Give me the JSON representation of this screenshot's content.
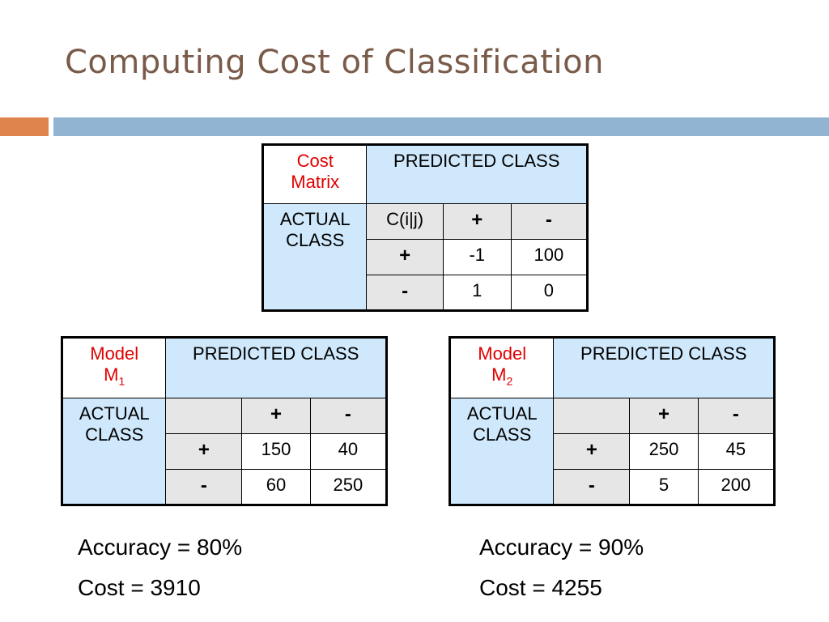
{
  "title": "Computing Cost of Classification",
  "colors": {
    "title": "#7a5b4a",
    "accent_bar": "#e0844e",
    "main_bar": "#91b4d2",
    "header_fill": "#cfe8fb",
    "cell_fill": "#e6e6e6",
    "red_label": "#e00000"
  },
  "cost_matrix": {
    "corner": [
      "Cost",
      "Matrix"
    ],
    "predicted_header": "PREDICTED CLASS",
    "actual_header": [
      "ACTUAL",
      "CLASS"
    ],
    "corner_cell": "C(i|j)",
    "col_labels": [
      "+",
      "-"
    ],
    "rows": [
      {
        "label": "+",
        "values": [
          "-1",
          "100"
        ]
      },
      {
        "label": "-",
        "values": [
          "1",
          "0"
        ]
      }
    ]
  },
  "model1": {
    "corner": [
      "Model",
      "M",
      "1"
    ],
    "predicted_header": "PREDICTED CLASS",
    "actual_header": [
      "ACTUAL",
      "CLASS"
    ],
    "col_labels": [
      "+",
      "-"
    ],
    "rows": [
      {
        "label": "+",
        "values": [
          "150",
          "40"
        ]
      },
      {
        "label": "-",
        "values": [
          "60",
          "250"
        ]
      }
    ],
    "accuracy": "Accuracy = 80%",
    "cost": "Cost = 3910"
  },
  "model2": {
    "corner": [
      "Model",
      "M",
      "2"
    ],
    "predicted_header": "PREDICTED CLASS",
    "actual_header": [
      "ACTUAL",
      "CLASS"
    ],
    "col_labels": [
      "+",
      "-"
    ],
    "rows": [
      {
        "label": "+",
        "values": [
          "250",
          "45"
        ]
      },
      {
        "label": "-",
        "values": [
          "5",
          "200"
        ]
      }
    ],
    "accuracy": "Accuracy = 90%",
    "cost": "Cost = 4255"
  }
}
